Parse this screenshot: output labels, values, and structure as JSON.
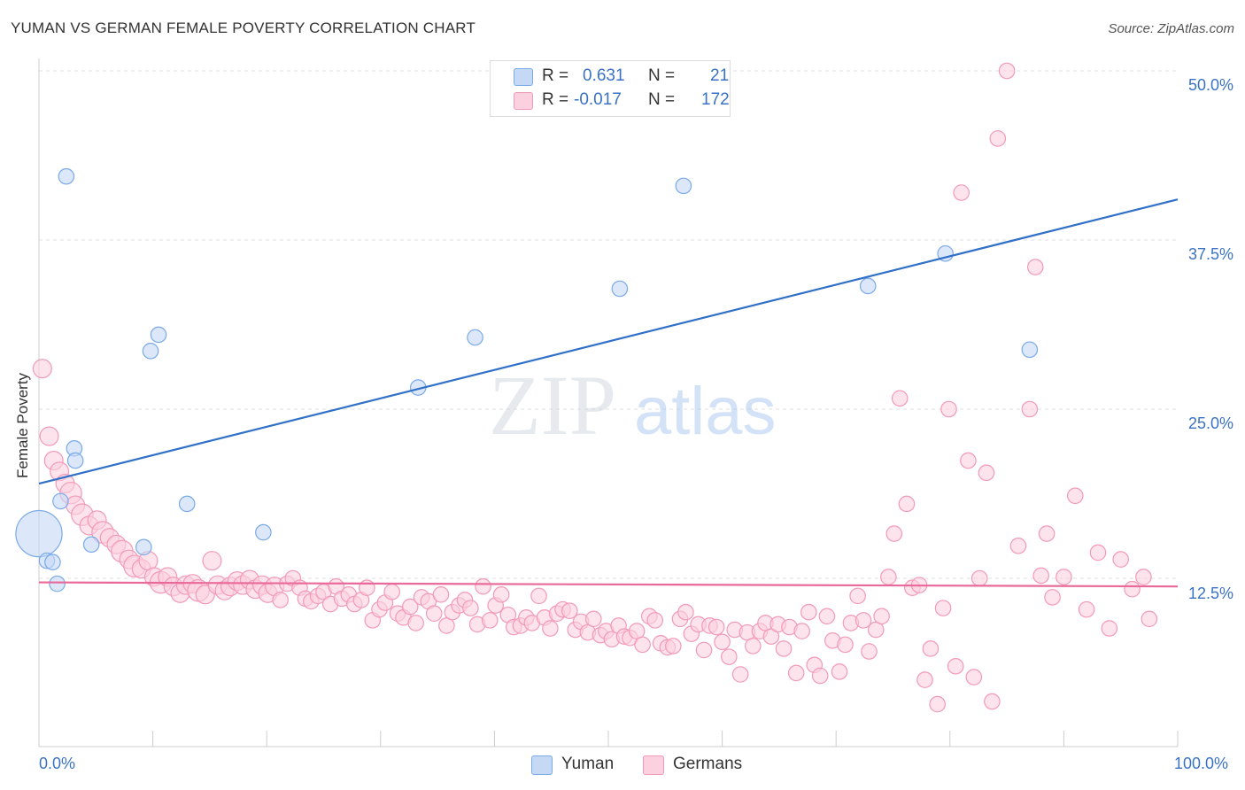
{
  "title": "YUMAN VS GERMAN FEMALE POVERTY CORRELATION CHART",
  "source": "Source: ZipAtlas.com",
  "watermark": {
    "zip": "ZIP",
    "atlas": "atlas"
  },
  "legend": {
    "yuman": {
      "r_label": "R =",
      "r_value": "0.631",
      "n_label": "N =",
      "n_value": "21"
    },
    "germans": {
      "r_label": "R =",
      "r_value": "-0.017",
      "n_label": "N =",
      "n_value": "172"
    }
  },
  "colors": {
    "yuman": "#7aaae8",
    "yuman_line": "#3070c8",
    "germans": "#f29ab8",
    "germans_line": "#e8699a",
    "axis_text": "#3a72c6"
  },
  "chart_data": {
    "type": "scatter",
    "title": "YUMAN VS GERMAN FEMALE POVERTY CORRELATION CHART",
    "xlabel": "",
    "ylabel": "Female Poverty",
    "xlim": [
      0,
      100
    ],
    "ylim": [
      0,
      51
    ],
    "x_tick_labels": [
      "0.0%",
      "100.0%"
    ],
    "y_ticks": [
      12.5,
      25.0,
      37.5,
      50.0
    ],
    "y_tick_labels": [
      "12.5%",
      "25.0%",
      "37.5%",
      "50.0%"
    ],
    "grid": true,
    "legend_position": "top-center",
    "series": [
      {
        "name": "Yuman",
        "r": 0.631,
        "n": 21,
        "trendline": [
          [
            0,
            19.5
          ],
          [
            100,
            40.5
          ]
        ],
        "points": [
          [
            0.0,
            15.8,
            30
          ],
          [
            2.4,
            42.2,
            10
          ],
          [
            0.7,
            13.8,
            10
          ],
          [
            1.2,
            13.7,
            10
          ],
          [
            1.6,
            12.1,
            10
          ],
          [
            1.9,
            18.2,
            10
          ],
          [
            3.1,
            22.1,
            10
          ],
          [
            3.2,
            21.2,
            10
          ],
          [
            4.6,
            15.0,
            10
          ],
          [
            9.2,
            14.8,
            10
          ],
          [
            9.8,
            29.3,
            10
          ],
          [
            10.5,
            30.5,
            10
          ],
          [
            13.0,
            18.0,
            10
          ],
          [
            19.7,
            15.9,
            10
          ],
          [
            33.3,
            26.6,
            10
          ],
          [
            38.3,
            30.3,
            10
          ],
          [
            51.0,
            33.9,
            10
          ],
          [
            56.6,
            41.5,
            10
          ],
          [
            72.8,
            34.1,
            10
          ],
          [
            79.6,
            36.5,
            10
          ],
          [
            87.0,
            29.4,
            10
          ]
        ]
      },
      {
        "name": "Germans",
        "r": -0.017,
        "n": 172,
        "trendline": [
          [
            0,
            12.2
          ],
          [
            100,
            11.9
          ]
        ],
        "points": [
          [
            0.3,
            28.0,
            12
          ],
          [
            0.9,
            23.0,
            12
          ],
          [
            1.3,
            21.2,
            12
          ],
          [
            1.8,
            20.4,
            12
          ],
          [
            2.3,
            19.5,
            12
          ],
          [
            2.8,
            18.8,
            14
          ],
          [
            3.2,
            17.9,
            12
          ],
          [
            3.8,
            17.2,
            14
          ],
          [
            4.4,
            16.4,
            12
          ],
          [
            5.1,
            16.8,
            12
          ],
          [
            5.6,
            15.9,
            14
          ],
          [
            6.2,
            15.5,
            12
          ],
          [
            6.8,
            15.0,
            12
          ],
          [
            7.3,
            14.5,
            14
          ],
          [
            7.9,
            13.9,
            12
          ],
          [
            8.4,
            13.4,
            14
          ],
          [
            9.0,
            13.2,
            12
          ],
          [
            9.6,
            13.8,
            12
          ],
          [
            10.1,
            12.6,
            12
          ],
          [
            10.7,
            12.2,
            14
          ],
          [
            11.3,
            12.6,
            12
          ],
          [
            11.8,
            11.9,
            12
          ],
          [
            12.4,
            11.4,
            12
          ],
          [
            12.9,
            12.0,
            12
          ],
          [
            13.5,
            12.1,
            12
          ],
          [
            14.0,
            11.6,
            14
          ],
          [
            14.6,
            11.3,
            12
          ],
          [
            15.2,
            13.8,
            12
          ],
          [
            15.7,
            12.0,
            12
          ],
          [
            16.3,
            11.6,
            12
          ],
          [
            16.8,
            11.9,
            12
          ],
          [
            17.4,
            12.3,
            12
          ],
          [
            17.9,
            12.0,
            12
          ],
          [
            18.5,
            12.4,
            12
          ],
          [
            19.0,
            11.7,
            12
          ],
          [
            19.6,
            12.0,
            12
          ],
          [
            20.1,
            11.4,
            12
          ],
          [
            20.7,
            11.9,
            12
          ],
          [
            21.2,
            10.9,
            10
          ],
          [
            21.8,
            12.1,
            10
          ],
          [
            22.3,
            12.5,
            10
          ],
          [
            22.9,
            11.8,
            10
          ],
          [
            23.4,
            11.0,
            10
          ],
          [
            23.9,
            10.8,
            10
          ],
          [
            24.5,
            11.2,
            10
          ],
          [
            25.0,
            11.5,
            10
          ],
          [
            25.6,
            10.6,
            10
          ],
          [
            26.1,
            11.9,
            10
          ],
          [
            26.6,
            11.0,
            10
          ],
          [
            27.2,
            11.3,
            10
          ],
          [
            27.7,
            10.6,
            10
          ],
          [
            28.3,
            10.9,
            10
          ],
          [
            28.8,
            11.8,
            10
          ],
          [
            29.3,
            9.4,
            10
          ],
          [
            29.9,
            10.2,
            10
          ],
          [
            30.4,
            10.7,
            10
          ],
          [
            31.0,
            11.5,
            10
          ],
          [
            31.5,
            9.9,
            10
          ],
          [
            32.0,
            9.6,
            10
          ],
          [
            32.6,
            10.4,
            10
          ],
          [
            33.1,
            9.2,
            10
          ],
          [
            33.6,
            11.1,
            10
          ],
          [
            34.2,
            10.8,
            10
          ],
          [
            34.7,
            9.9,
            10
          ],
          [
            35.3,
            11.3,
            10
          ],
          [
            35.8,
            9.0,
            10
          ],
          [
            36.3,
            10.0,
            10
          ],
          [
            36.9,
            10.5,
            10
          ],
          [
            37.4,
            10.9,
            10
          ],
          [
            37.9,
            10.3,
            10
          ],
          [
            38.5,
            9.1,
            10
          ],
          [
            39.0,
            11.9,
            10
          ],
          [
            39.6,
            9.4,
            10
          ],
          [
            40.1,
            10.5,
            10
          ],
          [
            40.6,
            11.3,
            10
          ],
          [
            41.2,
            9.8,
            10
          ],
          [
            41.7,
            8.9,
            10
          ],
          [
            42.3,
            9.0,
            10
          ],
          [
            42.8,
            9.6,
            10
          ],
          [
            43.3,
            9.2,
            10
          ],
          [
            43.9,
            11.2,
            10
          ],
          [
            44.4,
            9.6,
            10
          ],
          [
            44.9,
            8.8,
            10
          ],
          [
            45.5,
            9.9,
            10
          ],
          [
            46.0,
            10.2,
            10
          ],
          [
            46.6,
            10.1,
            10
          ],
          [
            47.1,
            8.7,
            10
          ],
          [
            47.6,
            9.3,
            10
          ],
          [
            48.2,
            8.5,
            10
          ],
          [
            48.7,
            9.5,
            10
          ],
          [
            49.3,
            8.3,
            10
          ],
          [
            49.8,
            8.6,
            10
          ],
          [
            50.3,
            8.0,
            10
          ],
          [
            50.9,
            9.0,
            10
          ],
          [
            51.4,
            8.2,
            10
          ],
          [
            51.9,
            8.1,
            10
          ],
          [
            52.5,
            8.6,
            10
          ],
          [
            53.0,
            7.6,
            10
          ],
          [
            53.6,
            9.7,
            10
          ],
          [
            54.1,
            9.4,
            10
          ],
          [
            54.6,
            7.7,
            10
          ],
          [
            55.2,
            7.4,
            10
          ],
          [
            55.7,
            7.5,
            10
          ],
          [
            56.3,
            9.5,
            10
          ],
          [
            56.8,
            10.0,
            10
          ],
          [
            57.3,
            8.4,
            10
          ],
          [
            57.9,
            9.1,
            10
          ],
          [
            58.4,
            7.2,
            10
          ],
          [
            58.9,
            9.0,
            10
          ],
          [
            59.5,
            8.9,
            10
          ],
          [
            60.0,
            7.8,
            10
          ],
          [
            60.6,
            6.7,
            10
          ],
          [
            61.1,
            8.7,
            10
          ],
          [
            61.6,
            5.4,
            10
          ],
          [
            62.2,
            8.5,
            10
          ],
          [
            62.7,
            7.5,
            10
          ],
          [
            63.3,
            8.6,
            10
          ],
          [
            63.8,
            9.2,
            10
          ],
          [
            64.3,
            8.2,
            10
          ],
          [
            64.9,
            9.1,
            10
          ],
          [
            65.4,
            7.3,
            10
          ],
          [
            65.9,
            8.9,
            10
          ],
          [
            66.5,
            5.5,
            10
          ],
          [
            67.0,
            8.6,
            10
          ],
          [
            67.6,
            10.0,
            10
          ],
          [
            68.1,
            6.1,
            10
          ],
          [
            68.6,
            5.3,
            10
          ],
          [
            69.2,
            9.7,
            10
          ],
          [
            69.7,
            7.9,
            10
          ],
          [
            70.3,
            5.6,
            10
          ],
          [
            70.8,
            7.6,
            10
          ],
          [
            71.3,
            9.2,
            10
          ],
          [
            71.9,
            11.2,
            10
          ],
          [
            72.4,
            9.4,
            10
          ],
          [
            72.9,
            7.1,
            10
          ],
          [
            73.5,
            8.7,
            10
          ],
          [
            74.0,
            9.7,
            10
          ],
          [
            74.6,
            12.6,
            10
          ],
          [
            75.1,
            15.8,
            10
          ],
          [
            75.6,
            25.8,
            10
          ],
          [
            76.2,
            18.0,
            10
          ],
          [
            76.7,
            11.8,
            10
          ],
          [
            77.3,
            12.0,
            10
          ],
          [
            77.8,
            5.0,
            10
          ],
          [
            78.3,
            7.3,
            10
          ],
          [
            78.9,
            3.2,
            10
          ],
          [
            79.4,
            10.3,
            10
          ],
          [
            79.9,
            25.0,
            10
          ],
          [
            80.5,
            6.0,
            10
          ],
          [
            81.0,
            41.0,
            10
          ],
          [
            81.6,
            21.2,
            10
          ],
          [
            82.1,
            5.2,
            10
          ],
          [
            82.6,
            12.5,
            10
          ],
          [
            83.2,
            20.3,
            10
          ],
          [
            83.7,
            3.4,
            10
          ],
          [
            84.2,
            45.0,
            10
          ],
          [
            85.0,
            50.0,
            10
          ],
          [
            86.0,
            14.9,
            10
          ],
          [
            87.0,
            25.0,
            10
          ],
          [
            87.5,
            35.5,
            10
          ],
          [
            88.0,
            12.7,
            10
          ],
          [
            88.5,
            15.8,
            10
          ],
          [
            89.0,
            11.1,
            10
          ],
          [
            90.0,
            12.6,
            10
          ],
          [
            91.0,
            18.6,
            10
          ],
          [
            92.0,
            10.2,
            10
          ],
          [
            93.0,
            14.4,
            10
          ],
          [
            94.0,
            8.8,
            10
          ],
          [
            95.0,
            13.9,
            10
          ],
          [
            96.0,
            11.7,
            10
          ],
          [
            97.0,
            12.6,
            10
          ],
          [
            97.5,
            9.5,
            10
          ]
        ]
      }
    ]
  },
  "bottom_legend": {
    "yuman": "Yuman",
    "germans": "Germans"
  }
}
